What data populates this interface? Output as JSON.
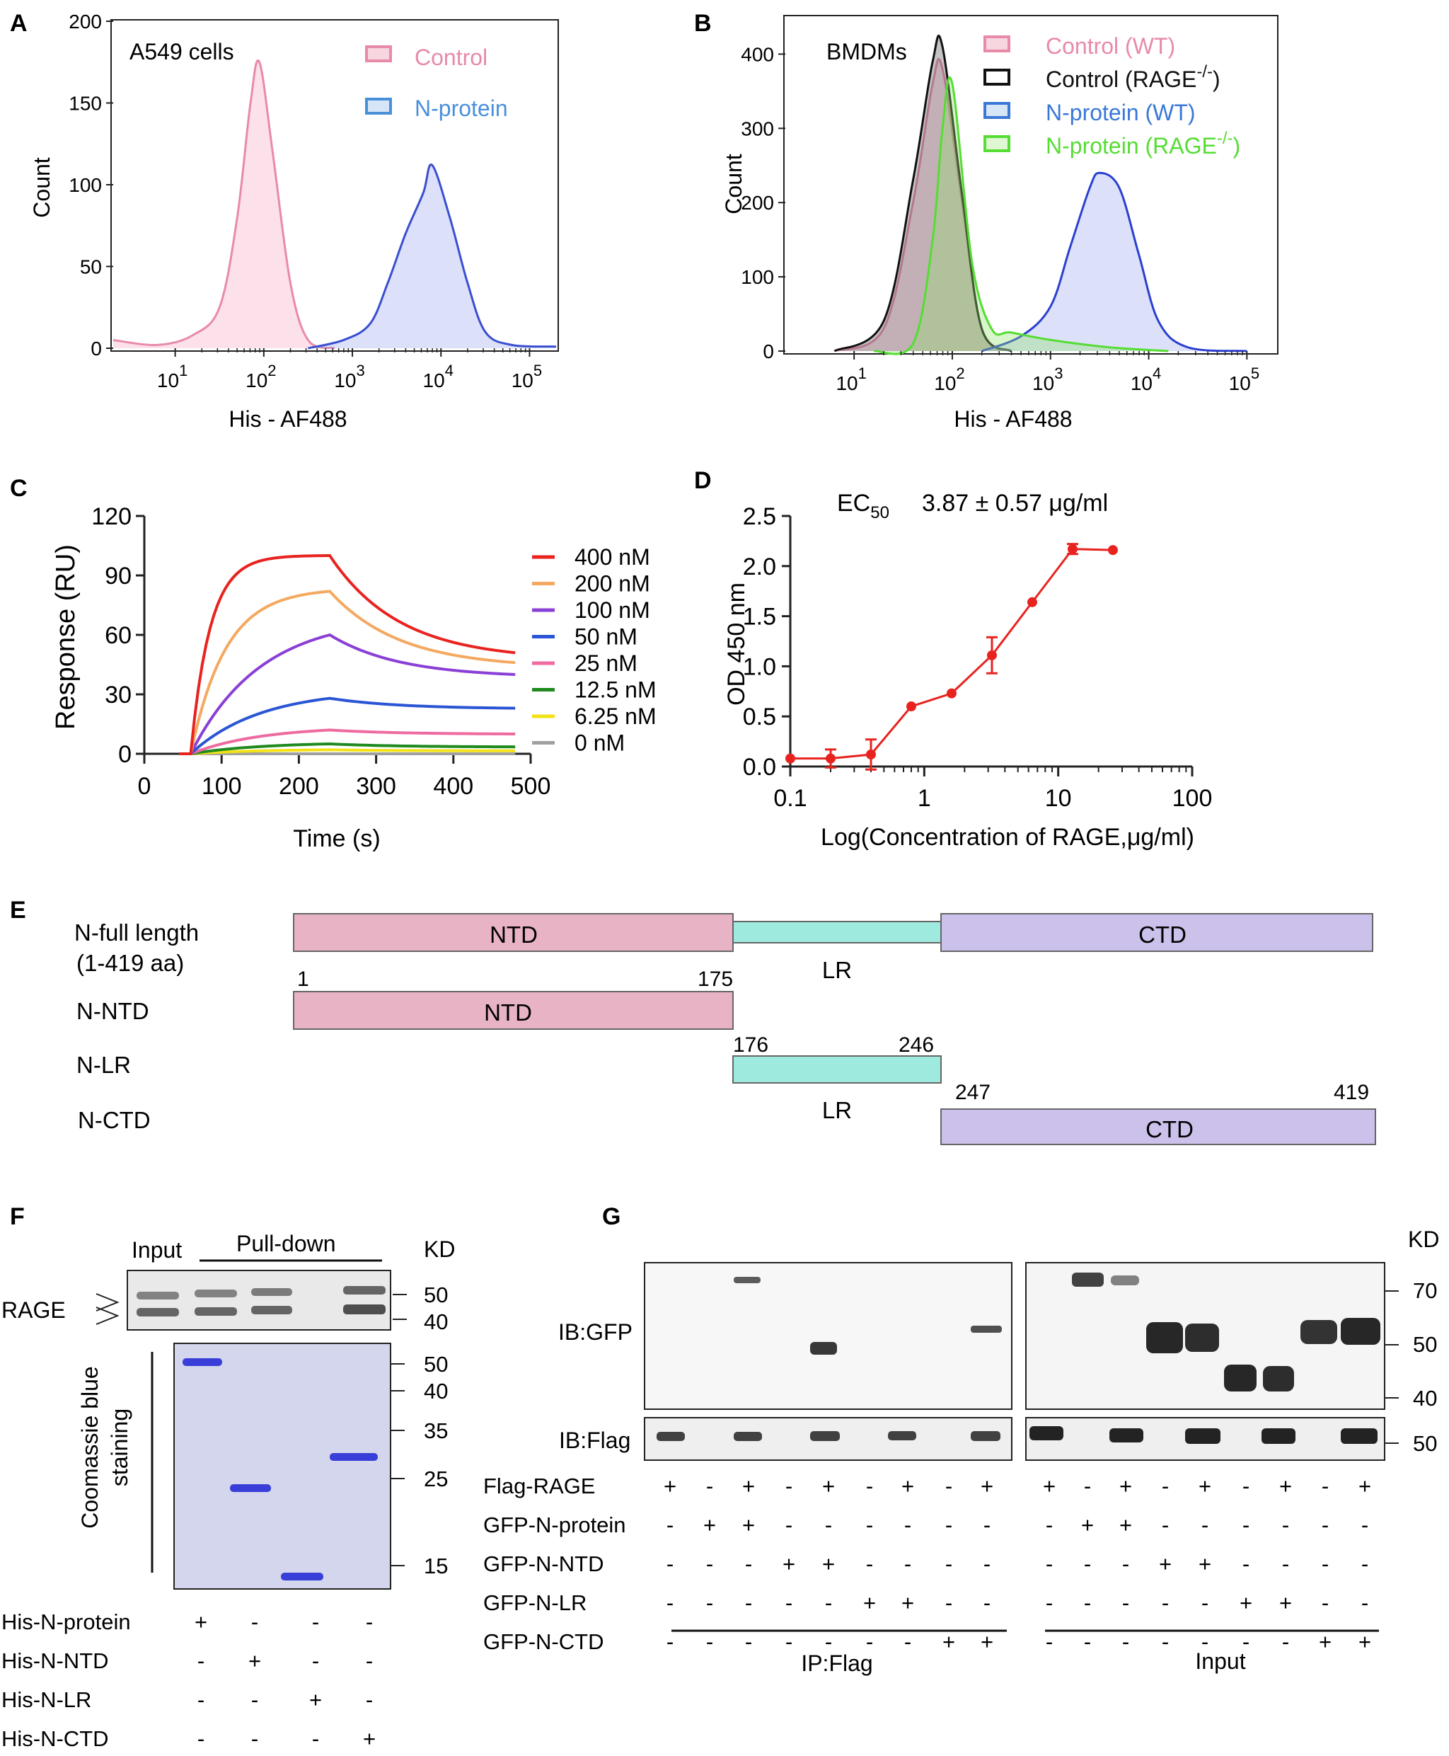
{
  "panels": {
    "A": {
      "letter": "A",
      "title": "A549 cells",
      "xlabel": "His - AF488",
      "ylabel": "Count",
      "yticks": [
        "0",
        "50",
        "100",
        "150",
        "200"
      ],
      "xticks": [
        {
          "base": "10",
          "exp": "1"
        },
        {
          "base": "10",
          "exp": "2"
        },
        {
          "base": "10",
          "exp": "3"
        },
        {
          "base": "10",
          "exp": "4"
        },
        {
          "base": "10",
          "exp": "5"
        }
      ],
      "legend": [
        {
          "label": "Control",
          "color": "#e88aa8"
        },
        {
          "label": "N-protein",
          "color": "#4a90d9"
        }
      ]
    },
    "B": {
      "letter": "B",
      "title": "BMDMs",
      "xlabel": "His - AF488",
      "ylabel": "Count",
      "yticks": [
        "0",
        "100",
        "200",
        "300",
        "400"
      ],
      "xticks": [
        {
          "base": "10",
          "exp": "1"
        },
        {
          "base": "10",
          "exp": "2"
        },
        {
          "base": "10",
          "exp": "3"
        },
        {
          "base": "10",
          "exp": "4"
        },
        {
          "base": "10",
          "exp": "5"
        }
      ],
      "legend": [
        {
          "label": "Control (WT)",
          "color": "#e88aa8",
          "sup": ""
        },
        {
          "label": "Control (RAGE",
          "color": "#111111",
          "sup": "-/-",
          "tail": ")"
        },
        {
          "label": "N-protein (WT)",
          "color": "#3a78d6",
          "sup": ""
        },
        {
          "label": "N-protein (RAGE",
          "color": "#55dd33",
          "sup": "-/-",
          "tail": ")"
        }
      ]
    },
    "C": {
      "letter": "C",
      "xlabel": "Time (s)",
      "ylabel": "Response (RU)",
      "xticks": [
        "0",
        "100",
        "200",
        "300",
        "400",
        "500"
      ],
      "yticks": [
        "0",
        "30",
        "60",
        "90",
        "120"
      ],
      "legend": [
        {
          "label": "400 nM",
          "color": "#e8231f"
        },
        {
          "label": "200 nM",
          "color": "#f4a860"
        },
        {
          "label": "100 nM",
          "color": "#8a3fd6"
        },
        {
          "label": "50 nM",
          "color": "#2a55d4"
        },
        {
          "label": "25 nM",
          "color": "#ee6aa0"
        },
        {
          "label": "12.5 nM",
          "color": "#1f8a1f"
        },
        {
          "label": "6.25 nM",
          "color": "#f2e216"
        },
        {
          "label": "0 nM",
          "color": "#a0a0a0"
        }
      ]
    },
    "D": {
      "letter": "D",
      "ec50_label": "EC",
      "ec50_sub": "50",
      "ec50_value": "3.87 ± 0.57 μg/ml",
      "xlabel": "Log(Concentration of RAGE,μg/ml)",
      "ylabel": "OD 450 nm",
      "xticks": [
        "0.1",
        "1",
        "10",
        "100"
      ],
      "yticks": [
        "0.0",
        "0.5",
        "1.0",
        "1.5",
        "2.0",
        "2.5"
      ]
    },
    "E": {
      "letter": "E",
      "rows": [
        {
          "label": "N-full length",
          "sublabel": "(1-419 aa)"
        },
        {
          "label": "N-NTD"
        },
        {
          "label": "N-LR"
        },
        {
          "label": "N-CTD"
        }
      ],
      "domains": {
        "ntd": "NTD",
        "lr": "LR",
        "ctd": "CTD"
      },
      "positions": [
        "1",
        "175",
        "176",
        "246",
        "247",
        "419"
      ],
      "colors": {
        "ntd": "#e9b3c6",
        "lr": "#9eeade",
        "ctd": "#cbc1ea"
      }
    },
    "F": {
      "letter": "F",
      "input_label": "Input",
      "pulldown_label": "Pull-down",
      "kd_label": "KD",
      "rage_label": "RAGE",
      "coomassie_label": "Coomassie blue",
      "staining_label": "staining",
      "kd_top": [
        "50",
        "40"
      ],
      "kd_bottom": [
        "50",
        "40",
        "35",
        "25",
        "15"
      ],
      "rows": [
        {
          "label": "His-N-protein",
          "marks": [
            "+",
            "-",
            "-",
            "-"
          ]
        },
        {
          "label": "His-N-NTD",
          "marks": [
            "-",
            "+",
            "-",
            "-"
          ]
        },
        {
          "label": "His-N-LR",
          "marks": [
            "-",
            "-",
            "+",
            "-"
          ]
        },
        {
          "label": "His-N-CTD",
          "marks": [
            "-",
            "-",
            "-",
            "+"
          ]
        }
      ]
    },
    "G": {
      "letter": "G",
      "kd_label": "KD",
      "ib_gfp": "IB:GFP",
      "ib_flag": "IB:Flag",
      "kd_marks": [
        "70",
        "50",
        "40",
        "50"
      ],
      "ip_label": "IP:Flag",
      "input_label": "Input",
      "rows": [
        {
          "label": "Flag-RAGE",
          "marks": [
            "+",
            "-",
            "+",
            "-",
            "+",
            "-",
            "+",
            "-",
            "+",
            "+",
            "-",
            "+",
            "-",
            "+",
            "-",
            "+",
            "-",
            "+"
          ]
        },
        {
          "label": "GFP-N-protein",
          "marks": [
            "-",
            "+",
            "+",
            "-",
            "-",
            "-",
            "-",
            "-",
            "-",
            "-",
            "+",
            "+",
            "-",
            "-",
            "-",
            "-",
            "-",
            "-"
          ]
        },
        {
          "label": "GFP-N-NTD",
          "marks": [
            "-",
            "-",
            "-",
            "+",
            "+",
            "-",
            "-",
            "-",
            "-",
            "-",
            "-",
            "-",
            "+",
            "+",
            "-",
            "-",
            "-",
            "-"
          ]
        },
        {
          "label": "GFP-N-LR",
          "marks": [
            "-",
            "-",
            "-",
            "-",
            "-",
            "+",
            "+",
            "-",
            "-",
            "-",
            "-",
            "-",
            "-",
            "-",
            "+",
            "+",
            "-",
            "-"
          ]
        },
        {
          "label": "GFP-N-CTD",
          "marks": [
            "-",
            "-",
            "-",
            "-",
            "-",
            "-",
            "-",
            "+",
            "+",
            "-",
            "-",
            "-",
            "-",
            "-",
            "-",
            "-",
            "+",
            "+"
          ]
        }
      ]
    }
  },
  "chart_data": [
    {
      "panel": "A",
      "type": "area",
      "title": "A549 cells",
      "xlabel": "His - AF488",
      "ylabel": "Count",
      "x_scale": "log10",
      "xlim": [
        0.3,
        5.3
      ],
      "ylim": [
        0,
        200
      ],
      "series": [
        {
          "name": "Control",
          "color": "#e88aa8",
          "x_log": [
            0.3,
            0.8,
            1.2,
            1.5,
            1.7,
            1.85,
            1.95,
            2.1,
            2.3,
            2.5,
            2.8
          ],
          "y": [
            5,
            2,
            8,
            25,
            80,
            150,
            175,
            120,
            40,
            5,
            0
          ]
        },
        {
          "name": "N-protein",
          "color": "#3a4fd0",
          "x_log": [
            2.5,
            2.9,
            3.2,
            3.4,
            3.6,
            3.8,
            3.9,
            4.1,
            4.3,
            4.5,
            4.8,
            5.3
          ],
          "y": [
            0,
            5,
            15,
            40,
            70,
            95,
            112,
            80,
            40,
            10,
            2,
            1
          ]
        }
      ]
    },
    {
      "panel": "B",
      "type": "area",
      "title": "BMDMs",
      "xlabel": "His - AF488",
      "ylabel": "Count",
      "x_scale": "log10",
      "xlim": [
        0.3,
        5.3
      ],
      "ylim": [
        0,
        450
      ],
      "series": [
        {
          "name": "Control (WT)",
          "color": "#e88aa8",
          "x_log": [
            0.8,
            1.3,
            1.6,
            1.8,
            1.9,
            2.1,
            2.3,
            2.6
          ],
          "y": [
            0,
            30,
            200,
            360,
            380,
            200,
            30,
            0
          ]
        },
        {
          "name": "Control (RAGE-/-)",
          "color": "#111111",
          "x_log": [
            0.8,
            1.3,
            1.6,
            1.8,
            1.9,
            2.1,
            2.3,
            2.6
          ],
          "y": [
            0,
            40,
            230,
            390,
            410,
            210,
            30,
            0
          ]
        },
        {
          "name": "N-protein (WT)",
          "color": "#2a3fd0",
          "x_log": [
            2.3,
            2.7,
            3.0,
            3.2,
            3.4,
            3.5,
            3.7,
            3.9,
            4.1,
            4.4,
            5.0
          ],
          "y": [
            0,
            20,
            60,
            140,
            220,
            240,
            220,
            130,
            40,
            5,
            0
          ]
        },
        {
          "name": "N-protein (RAGE-/-)",
          "color": "#55dd33",
          "x_log": [
            1.2,
            1.6,
            1.8,
            1.9,
            2.0,
            2.2,
            2.4,
            2.6,
            3.0,
            3.6,
            4.2
          ],
          "y": [
            0,
            10,
            150,
            300,
            360,
            120,
            30,
            25,
            15,
            5,
            0
          ]
        }
      ]
    },
    {
      "panel": "C",
      "type": "line",
      "xlabel": "Time (s)",
      "ylabel": "Response (RU)",
      "xlim": [
        0,
        500
      ],
      "ylim": [
        0,
        120
      ],
      "association_start": 60,
      "dissociation_start": 240,
      "end": 480,
      "series": [
        {
          "name": "400 nM",
          "color": "#e8231f",
          "plateau": 100,
          "end_value": 51,
          "tau": 25
        },
        {
          "name": "200 nM",
          "color": "#f4a860",
          "plateau": 82,
          "end_value": 46,
          "tau": 45
        },
        {
          "name": "100 nM",
          "color": "#8a3fd6",
          "plateau": 60,
          "end_value": 40,
          "tau": 90
        },
        {
          "name": "50 nM",
          "color": "#2a55d4",
          "plateau": 28,
          "end_value": 23,
          "tau": 90
        },
        {
          "name": "25 nM",
          "color": "#ee6aa0",
          "plateau": 12,
          "end_value": 10,
          "tau": 90
        },
        {
          "name": "12.5 nM",
          "color": "#1f8a1f",
          "plateau": 5,
          "end_value": 3.5,
          "tau": 90
        },
        {
          "name": "6.25 nM",
          "color": "#f2e216",
          "plateau": 2,
          "end_value": 1.5,
          "tau": 90
        },
        {
          "name": "0 nM",
          "color": "#a0a0a0",
          "plateau": 0,
          "end_value": 0,
          "tau": 90
        }
      ]
    },
    {
      "panel": "D",
      "type": "line",
      "xlabel": "Log(Concentration of RAGE,μg/ml)",
      "ylabel": "OD 450 nm",
      "x_scale": "log10",
      "xlim": [
        0.1,
        100
      ],
      "ylim": [
        0,
        2.5
      ],
      "series": [
        {
          "name": "RAGE",
          "color": "#e8231f",
          "x": [
            0.1,
            0.2,
            0.4,
            0.8,
            1.6,
            3.2,
            6.4,
            12.8,
            25.6
          ],
          "y": [
            0.08,
            0.08,
            0.12,
            0.6,
            0.73,
            1.11,
            1.64,
            2.17,
            2.16
          ],
          "err": [
            0.0,
            0.09,
            0.15,
            0.0,
            0.0,
            0.18,
            0.0,
            0.05,
            0.0
          ]
        }
      ]
    }
  ]
}
